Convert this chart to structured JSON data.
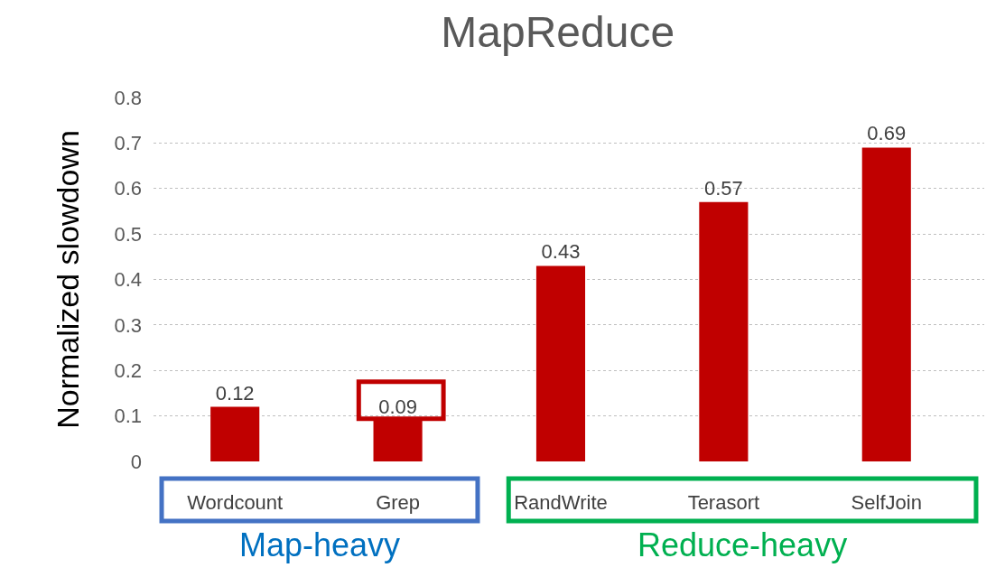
{
  "chart_data": {
    "type": "bar",
    "title": "MapReduce",
    "ylabel": "Normalized slowdown",
    "categories": [
      "Wordcount",
      "Grep",
      "RandWrite",
      "Terasort",
      "SelfJoin"
    ],
    "values": [
      0.12,
      0.09,
      0.43,
      0.57,
      0.69
    ],
    "color": "#c00000",
    "ylim": [
      0,
      0.8
    ],
    "yticks": [
      0,
      0.1,
      0.2,
      0.3,
      0.4,
      0.5,
      0.6,
      0.7,
      0.8
    ],
    "grid": "y",
    "data_labels": true,
    "legend": false,
    "annotations": [
      "Map-heavy",
      "Reduce-heavy"
    ]
  }
}
